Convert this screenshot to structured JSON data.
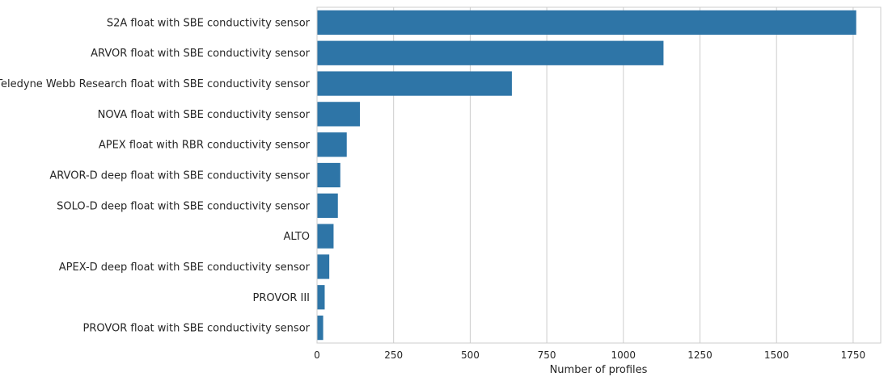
{
  "chart_data": {
    "type": "bar",
    "orientation": "horizontal",
    "categories": [
      "S2A float with SBE conductivity sensor",
      "ARVOR float with SBE conductivity sensor",
      "Teledyne Webb Research float with SBE conductivity sensor",
      "NOVA float with SBE conductivity sensor",
      "APEX float with RBR conductivity sensor",
      "ARVOR-D deep float with SBE conductivity sensor",
      "SOLO-D deep float with SBE conductivity sensor",
      "ALTO",
      "APEX-D deep float with SBE conductivity sensor",
      "PROVOR III",
      "PROVOR float with SBE conductivity sensor"
    ],
    "values": [
      1760,
      1131,
      636,
      140,
      97,
      76,
      68,
      54,
      40,
      25,
      20
    ],
    "title": "",
    "xlabel": "Number of profiles",
    "ylabel": "",
    "xlim": [
      0,
      1840
    ],
    "xticks": [
      0,
      250,
      500,
      750,
      1000,
      1250,
      1500,
      1750
    ],
    "grid": true,
    "bar_color": "#2e75a7",
    "grid_color": "#cccccc",
    "spine_color": "#cccccc"
  }
}
